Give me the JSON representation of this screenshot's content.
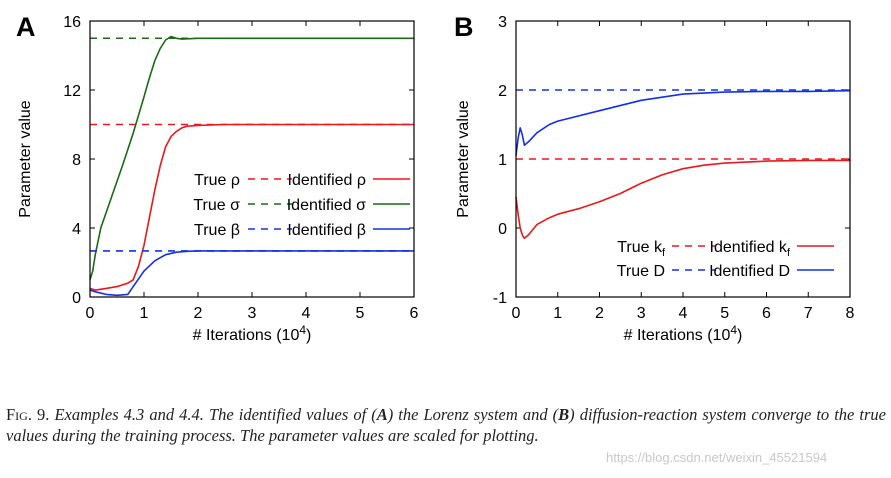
{
  "caption": {
    "label": "Fig. 9.",
    "title": "Examples 4.3 and 4.4.",
    "text_1": "The identified values of (",
    "a": "A",
    "text_2": ") the Lorenz system and (",
    "b": "B",
    "text_3": ") diffusion-reaction system converge to the true values during the training process. The parameter values are scaled for plotting."
  },
  "watermark": "https://blog.csdn.net/weixin_45521594",
  "chart_data": [
    {
      "panel_label": "A",
      "type": "line",
      "xlabel": "# Iterations (10",
      "xlabel_sup": "4",
      "xlabel_close": ")",
      "ylabel": "Parameter value",
      "xlim": [
        0,
        6
      ],
      "ylim": [
        0,
        16
      ],
      "xticks": [
        0,
        1,
        2,
        3,
        4,
        5,
        6
      ],
      "yticks": [
        0,
        4,
        8,
        12,
        16
      ],
      "legend_position": "center-right",
      "series": [
        {
          "key": "rho",
          "color": "#e8191b",
          "true_label": "True ρ",
          "identified_label": "Identified ρ",
          "true_value": 10,
          "x": [
            0,
            0.1,
            0.3,
            0.5,
            0.7,
            0.8,
            0.9,
            1.0,
            1.1,
            1.2,
            1.3,
            1.4,
            1.5,
            1.6,
            1.7,
            1.8,
            2.0,
            2.5,
            3,
            4,
            5,
            6
          ],
          "y": [
            0.5,
            0.4,
            0.5,
            0.6,
            0.8,
            1.0,
            1.8,
            3.0,
            4.6,
            6.2,
            7.6,
            8.7,
            9.3,
            9.6,
            9.8,
            9.9,
            9.95,
            10.0,
            10.0,
            10.0,
            10.0,
            10.0
          ]
        },
        {
          "key": "sigma",
          "color": "#1a6b14",
          "true_label": "True σ",
          "identified_label": "Identified σ",
          "true_value": 15,
          "x": [
            0,
            0.05,
            0.1,
            0.2,
            0.4,
            0.6,
            0.8,
            1.0,
            1.1,
            1.2,
            1.3,
            1.4,
            1.5,
            1.6,
            1.7,
            2.0,
            2.5,
            3,
            4,
            5,
            6
          ],
          "y": [
            1.0,
            1.5,
            2.5,
            4.0,
            5.8,
            7.6,
            9.5,
            11.6,
            12.7,
            13.7,
            14.4,
            14.9,
            15.1,
            15.0,
            14.95,
            15.0,
            15.0,
            15.0,
            15.0,
            15.0,
            15.0
          ]
        },
        {
          "key": "beta",
          "color": "#1530e0",
          "true_label": "True β",
          "identified_label": "Identified β",
          "true_value": 2.67,
          "x": [
            0,
            0.1,
            0.3,
            0.5,
            0.7,
            0.8,
            1.0,
            1.2,
            1.4,
            1.6,
            1.8,
            2.0,
            3,
            4,
            5,
            6
          ],
          "y": [
            0.4,
            0.3,
            0.15,
            0.1,
            0.15,
            0.6,
            1.5,
            2.1,
            2.45,
            2.6,
            2.65,
            2.67,
            2.67,
            2.67,
            2.67,
            2.67
          ]
        }
      ]
    },
    {
      "panel_label": "B",
      "type": "line",
      "xlabel": "# Iterations (10",
      "xlabel_sup": "4",
      "xlabel_close": ")",
      "ylabel": "Parameter value",
      "xlim": [
        0,
        8
      ],
      "ylim": [
        -1,
        3
      ],
      "xticks": [
        0,
        1,
        2,
        3,
        4,
        5,
        6,
        7,
        8
      ],
      "yticks": [
        -1,
        0,
        1,
        2,
        3
      ],
      "legend_position": "bottom-right",
      "series": [
        {
          "key": "kf",
          "color": "#e8191b",
          "true_label": "True k",
          "true_sub": "f",
          "identified_label": "Identified k",
          "identified_sub": "f",
          "true_value": 1,
          "x": [
            0,
            0.05,
            0.1,
            0.15,
            0.2,
            0.3,
            0.5,
            0.8,
            1.0,
            1.5,
            2.0,
            2.5,
            3.0,
            3.5,
            4.0,
            4.5,
            5.0,
            6.0,
            7.0,
            8.0
          ],
          "y": [
            0.45,
            0.2,
            0.0,
            -0.1,
            -0.15,
            -0.1,
            0.05,
            0.15,
            0.2,
            0.28,
            0.38,
            0.5,
            0.65,
            0.77,
            0.86,
            0.91,
            0.94,
            0.97,
            0.98,
            0.98
          ]
        },
        {
          "key": "D",
          "color": "#1530e0",
          "true_label": "True D",
          "identified_label": "Identified D",
          "true_value": 2,
          "x": [
            0,
            0.05,
            0.1,
            0.15,
            0.2,
            0.3,
            0.5,
            0.8,
            1.0,
            2.0,
            3.0,
            4.0,
            5.0,
            6.0,
            7.0,
            8.0
          ],
          "y": [
            1.05,
            1.3,
            1.45,
            1.35,
            1.2,
            1.25,
            1.38,
            1.5,
            1.55,
            1.7,
            1.85,
            1.94,
            1.97,
            1.98,
            1.98,
            1.99
          ]
        }
      ]
    }
  ]
}
